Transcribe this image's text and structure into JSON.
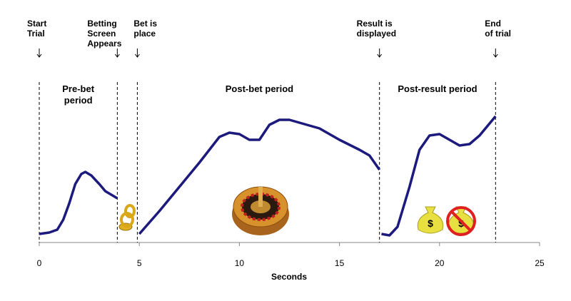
{
  "chart_data": {
    "type": "line",
    "x_label": "Seconds",
    "xlim": [
      0,
      25
    ],
    "xticks": [
      0,
      5,
      10,
      15,
      20,
      25
    ],
    "ylim": [
      0,
      200
    ],
    "x": [
      0,
      0.5,
      0.9,
      1.2,
      1.5,
      1.8,
      2.1,
      2.3,
      2.6,
      3.0,
      3.3,
      3.9,
      4.5,
      5.0,
      5.5,
      6,
      7,
      8,
      8.5,
      9,
      9.5,
      10,
      10.5,
      11,
      11.5,
      12,
      12.5,
      13,
      14,
      15,
      16,
      16.5,
      17,
      17.05,
      17.1,
      17.5,
      17.9,
      18.5,
      19,
      19.5,
      20,
      20.5,
      21,
      21.5,
      22,
      22.8
    ],
    "series": [
      {
        "color": "#1c1a7c",
        "values": [
          12,
          14,
          18,
          32,
          55,
          82,
          96,
          99,
          94,
          82,
          72,
          62,
          null,
          12,
          28,
          44,
          78,
          112,
          130,
          148,
          154,
          152,
          144,
          144,
          165,
          172,
          172,
          168,
          160,
          144,
          130,
          122,
          102,
          null,
          12,
          10,
          22,
          78,
          130,
          150,
          152,
          144,
          136,
          138,
          150,
          177
        ]
      }
    ],
    "markers": [
      {
        "x": 0,
        "label": [
          "Start",
          "Trial"
        ]
      },
      {
        "x": 3.9,
        "label": [
          "Betting",
          "Screen",
          "Appears"
        ]
      },
      {
        "x": 4.9,
        "label": [
          "Bet is",
          "place"
        ]
      },
      {
        "x": 17,
        "label": [
          "Result is",
          "displayed"
        ]
      },
      {
        "x": 22.8,
        "label": [
          "End",
          "of trial"
        ]
      }
    ],
    "periods": [
      {
        "x": 1.95,
        "label": [
          "Pre-bet",
          "period"
        ]
      },
      {
        "x": 11,
        "label": [
          "Post-bet period"
        ]
      },
      {
        "x": 19.9,
        "label": [
          "Post-result period"
        ]
      }
    ]
  }
}
